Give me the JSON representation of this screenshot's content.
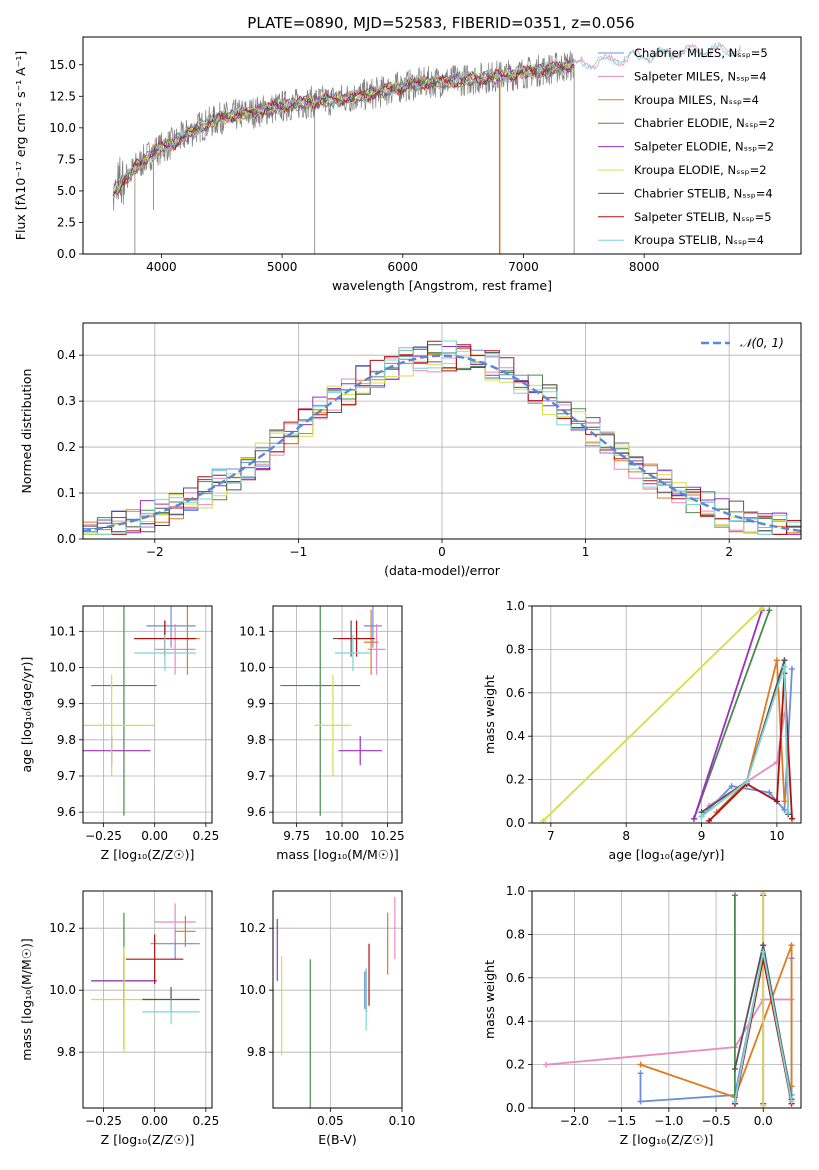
{
  "figure_title": "PLATE=0890, MJD=52583, FIBERID=0351, z=0.056",
  "colors": {
    "models": [
      "#6c8ee0",
      "#e88bc0",
      "#e07b20",
      "#4a8a50",
      "#9b30c0",
      "#d4e040",
      "#555555",
      "#b01010",
      "#7fd4d4"
    ]
  },
  "chart_data": [
    {
      "id": "spectrum",
      "type": "line",
      "title": "PLATE=0890, MJD=52583, FIBERID=0351, z=0.056",
      "xlabel": "wavelength [Angstrom, rest frame]",
      "ylabel": "Flux [fλ10⁻¹⁷ erg cm⁻² s⁻¹ A⁻¹]",
      "xlim": [
        3350,
        9300
      ],
      "ylim": [
        0,
        17.2
      ],
      "xticks": [
        "4000",
        "5000",
        "6000",
        "7000",
        "8000"
      ],
      "xtick_values": [
        4000,
        5000,
        6000,
        7000,
        8000
      ],
      "yticks": [
        "0.0",
        "2.5",
        "5.0",
        "7.5",
        "10.0",
        "12.5",
        "15.0"
      ],
      "ytick_values": [
        0,
        2.5,
        5,
        7.5,
        10,
        12.5,
        15
      ],
      "legend": "right",
      "series": [
        {
          "name": "Chabrier MILES, Nₛₛₚ=5",
          "model": true
        },
        {
          "name": "Salpeter MILES, Nₛₛₚ=4",
          "model": true
        },
        {
          "name": "Kroupa MILES, Nₛₛₚ=4",
          "model": true
        },
        {
          "name": "Chabrier ELODIE, Nₛₛₚ=2",
          "model": true
        },
        {
          "name": "Salpeter ELODIE, Nₛₛₚ=2",
          "model": true
        },
        {
          "name": "Kroupa ELODIE, Nₛₛₚ=2",
          "model": true
        },
        {
          "name": "Chabrier STELIB, Nₛₛₚ=4",
          "model": true
        },
        {
          "name": "Salpeter STELIB, Nₛₛₚ=5",
          "model": true
        },
        {
          "name": "Kroupa STELIB, Nₛₛₚ=4",
          "model": true
        }
      ],
      "continuum": {
        "x": [
          3600,
          3800,
          3950,
          4100,
          4300,
          4500,
          4800,
          5000,
          5200,
          5500,
          5800,
          6000,
          6200,
          6500,
          6700,
          6900,
          7100,
          7300,
          7500,
          7700,
          7900,
          8100,
          8300,
          8500,
          8900,
          9200
        ],
        "y": [
          4.8,
          7.0,
          8.2,
          8.8,
          10.0,
          10.8,
          11.3,
          11.7,
          12.0,
          12.3,
          12.8,
          13.3,
          13.6,
          13.8,
          14.0,
          14.2,
          14.5,
          14.8,
          15.1,
          15.3,
          15.6,
          15.8,
          16.0,
          16.1,
          16.2,
          16.3
        ]
      }
    },
    {
      "id": "residuals",
      "type": "bar",
      "xlabel": "(data-model)/error",
      "ylabel": "Normed distribution",
      "xlim": [
        -2.5,
        2.5
      ],
      "ylim": [
        0,
        0.47
      ],
      "xticks": [
        "−2",
        "−1",
        "0",
        "1",
        "2"
      ],
      "xtick_values": [
        -2,
        -1,
        0,
        1,
        2
      ],
      "yticks": [
        "0.0",
        "0.1",
        "0.2",
        "0.3",
        "0.4"
      ],
      "ytick_values": [
        0,
        0.1,
        0.2,
        0.3,
        0.4
      ],
      "legend_label": "𝒩(0, 1)",
      "bin_width": 0.1,
      "bin_start": -2.5,
      "reference_curve": "gaussian(0,1)",
      "amplitude_jitter": 0.035
    },
    {
      "id": "age-vs-z",
      "type": "scatter",
      "xlabel": "Z [log₁₀(Z/Z☉)]",
      "ylabel": "age  [log₁₀(age/yr)]",
      "xlim": [
        -0.35,
        0.28
      ],
      "ylim": [
        9.57,
        10.17
      ],
      "xticks": [
        "−0.25",
        "0.00",
        "0.25"
      ],
      "xtick_values": [
        -0.25,
        0,
        0.25
      ],
      "yticks": [
        "9.6",
        "9.7",
        "9.8",
        "9.9",
        "10.0",
        "10.1"
      ],
      "ytick_values": [
        9.6,
        9.7,
        9.8,
        9.9,
        10.0,
        10.1
      ],
      "points": [
        {
          "x": 0.08,
          "y": 10.115,
          "xe": 0.12,
          "ye": 0.06,
          "c": 0
        },
        {
          "x": 0.1,
          "y": 10.05,
          "xe": 0.1,
          "ye": 0.07,
          "c": 1
        },
        {
          "x": 0.16,
          "y": 10.08,
          "xe": 0.06,
          "ye": 0.1,
          "c": 2
        },
        {
          "x": -0.15,
          "y": 9.95,
          "xe": 0.16,
          "ye": 0.36,
          "c": 3
        },
        {
          "x": -0.21,
          "y": 9.77,
          "xe": 0.19,
          "ye": 0.04,
          "c": 4
        },
        {
          "x": -0.21,
          "y": 9.84,
          "xe": 0.21,
          "ye": 0.14,
          "c": 5
        },
        {
          "x": 0.05,
          "y": 10.08,
          "xe": 0.15,
          "ye": 0.05,
          "c": 6
        },
        {
          "x": 0.05,
          "y": 10.08,
          "xe": 0.15,
          "ye": 0.05,
          "c": 7
        },
        {
          "x": 0.05,
          "y": 10.04,
          "xe": 0.15,
          "ye": 0.05,
          "c": 8
        }
      ]
    },
    {
      "id": "age-vs-mass",
      "type": "scatter",
      "xlabel": "mass [log₁₀(M/M☉)]",
      "ylabel": "",
      "xlim": [
        9.62,
        10.33
      ],
      "ylim": [
        9.57,
        10.17
      ],
      "xticks": [
        "9.75",
        "10.00",
        "10.25"
      ],
      "xtick_values": [
        9.75,
        10,
        10.25
      ],
      "yticks": [
        "9.6",
        "9.7",
        "9.8",
        "9.9",
        "10.0",
        "10.1"
      ],
      "ytick_values": [
        9.6,
        9.7,
        9.8,
        9.9,
        10.0,
        10.1
      ],
      "points": [
        {
          "x": 10.17,
          "y": 10.115,
          "xe": 0.05,
          "ye": 0.06,
          "c": 0
        },
        {
          "x": 10.19,
          "y": 10.05,
          "xe": 0.05,
          "ye": 0.07,
          "c": 1
        },
        {
          "x": 10.16,
          "y": 10.07,
          "xe": 0.04,
          "ye": 0.09,
          "c": 2
        },
        {
          "x": 9.88,
          "y": 9.95,
          "xe": 0.22,
          "ye": 0.36,
          "c": 3
        },
        {
          "x": 10.1,
          "y": 9.77,
          "xe": 0.12,
          "ye": 0.04,
          "c": 4
        },
        {
          "x": 9.95,
          "y": 9.84,
          "xe": 0.1,
          "ye": 0.14,
          "c": 5
        },
        {
          "x": 10.05,
          "y": 10.08,
          "xe": 0.1,
          "ye": 0.05,
          "c": 6
        },
        {
          "x": 10.08,
          "y": 10.08,
          "xe": 0.1,
          "ye": 0.05,
          "c": 7
        },
        {
          "x": 10.06,
          "y": 10.04,
          "xe": 0.1,
          "ye": 0.05,
          "c": 8
        }
      ]
    },
    {
      "id": "weight-vs-age",
      "type": "line",
      "xlabel": "age  [log₁₀(age/yr)]",
      "ylabel": "mass weight",
      "xlim": [
        6.75,
        10.32
      ],
      "ylim": [
        0,
        1
      ],
      "xticks": [
        "7",
        "8",
        "9",
        "10"
      ],
      "xtick_values": [
        7,
        8,
        9,
        10
      ],
      "yticks": [
        "0.0",
        "0.2",
        "0.4",
        "0.6",
        "0.8",
        "1.0"
      ],
      "ytick_values": [
        0,
        0.2,
        0.4,
        0.6,
        0.8,
        1.0
      ],
      "series": [
        {
          "c": 0,
          "x": [
            9.0,
            9.4,
            9.9,
            10.1,
            10.2
          ],
          "y": [
            0.03,
            0.17,
            0.14,
            0.06,
            0.71
          ]
        },
        {
          "c": 1,
          "x": [
            9.1,
            9.6,
            10.0,
            10.1
          ],
          "y": [
            0.08,
            0.19,
            0.28,
            0.5
          ]
        },
        {
          "c": 2,
          "x": [
            9.2,
            9.6,
            10.0,
            10.1
          ],
          "y": [
            0.05,
            0.19,
            0.75,
            0.1
          ]
        },
        {
          "c": 3,
          "x": [
            8.9,
            9.9
          ],
          "y": [
            0.02,
            0.98
          ]
        },
        {
          "c": 4,
          "x": [
            8.9,
            9.8
          ],
          "y": [
            0.02,
            0.98
          ]
        },
        {
          "c": 5,
          "x": [
            6.9,
            9.8
          ],
          "y": [
            0.01,
            0.99
          ]
        },
        {
          "c": 6,
          "x": [
            9.0,
            9.6,
            10.1,
            10.15
          ],
          "y": [
            0.05,
            0.19,
            0.75,
            0.04
          ]
        },
        {
          "c": 7,
          "x": [
            9.1,
            9.6,
            10.0,
            10.1,
            10.2
          ],
          "y": [
            0.01,
            0.18,
            0.1,
            0.69,
            0.02
          ]
        },
        {
          "c": 8,
          "x": [
            9.0,
            9.6,
            10.1,
            10.15
          ],
          "y": [
            0.03,
            0.19,
            0.72,
            0.05
          ]
        }
      ]
    },
    {
      "id": "mass-vs-z",
      "type": "scatter",
      "xlabel": "Z [log₁₀(Z/Z☉)]",
      "ylabel": "mass [log₁₀(M/M☉)]",
      "xlim": [
        -0.35,
        0.28
      ],
      "ylim": [
        9.62,
        10.32
      ],
      "xticks": [
        "−0.25",
        "0.00",
        "0.25"
      ],
      "xtick_values": [
        -0.25,
        0,
        0.25
      ],
      "yticks": [
        "9.8",
        "10.0",
        "10.2"
      ],
      "ytick_values": [
        9.8,
        10.0,
        10.2
      ],
      "points": [
        {
          "x": 0.1,
          "y": 10.15,
          "xe": 0.12,
          "ye": 0.05,
          "c": 0
        },
        {
          "x": 0.1,
          "y": 10.22,
          "xe": 0.1,
          "ye": 0.06,
          "c": 1
        },
        {
          "x": 0.15,
          "y": 10.19,
          "xe": 0.05,
          "ye": 0.05,
          "c": 2
        },
        {
          "x": -0.15,
          "y": 10.03,
          "xe": 0.16,
          "ye": 0.22,
          "c": 3
        },
        {
          "x": -0.15,
          "y": 10.03,
          "xe": 0.16,
          "ye": 0.08,
          "c": 4
        },
        {
          "x": -0.15,
          "y": 9.97,
          "xe": 0.16,
          "ye": 0.17,
          "c": 5
        },
        {
          "x": 0.08,
          "y": 9.97,
          "xe": 0.14,
          "ye": 0.04,
          "c": 6
        },
        {
          "x": 0.0,
          "y": 10.1,
          "xe": 0.14,
          "ye": 0.08,
          "c": 7
        },
        {
          "x": 0.08,
          "y": 9.93,
          "xe": 0.14,
          "ye": 0.04,
          "c": 8
        }
      ]
    },
    {
      "id": "mass-vs-ebv",
      "type": "scatter",
      "xlabel": "E(B-V)",
      "ylabel": "",
      "xlim": [
        0.01,
        0.1
      ],
      "ylim": [
        9.62,
        10.32
      ],
      "xticks": [
        "0.05",
        "0.10"
      ],
      "xtick_values": [
        0.05,
        0.1
      ],
      "yticks": [
        "9.8",
        "10.0",
        "10.2"
      ],
      "ytick_values": [
        9.8,
        10.0,
        10.2
      ],
      "points": [
        {
          "x": 0.074,
          "y": 10.0,
          "xe": 0,
          "ye": 0.06,
          "c": 0
        },
        {
          "x": 0.095,
          "y": 10.2,
          "xe": 0,
          "ye": 0.1,
          "c": 1
        },
        {
          "x": 0.09,
          "y": 10.15,
          "xe": 0,
          "ye": 0.1,
          "c": 2
        },
        {
          "x": 0.036,
          "y": 9.85,
          "xe": 0,
          "ye": 0.25,
          "c": 3
        },
        {
          "x": 0.013,
          "y": 10.13,
          "xe": 0,
          "ye": 0.1,
          "c": 4
        },
        {
          "x": 0.016,
          "y": 9.95,
          "xe": 0,
          "ye": 0.16,
          "c": 5
        },
        {
          "x": 0.075,
          "y": 10.0,
          "xe": 0,
          "ye": 0.07,
          "c": 6
        },
        {
          "x": 0.077,
          "y": 10.05,
          "xe": 0,
          "ye": 0.1,
          "c": 7
        },
        {
          "x": 0.075,
          "y": 9.97,
          "xe": 0,
          "ye": 0.1,
          "c": 8
        }
      ]
    },
    {
      "id": "weight-vs-z",
      "type": "line",
      "xlabel": "Z [log₁₀(Z/Z☉)]",
      "ylabel": "mass weight",
      "xlim": [
        -2.45,
        0.4
      ],
      "ylim": [
        0,
        1
      ],
      "xticks": [
        "−2.0",
        "−1.5",
        "−1.0",
        "−0.5",
        "0.0"
      ],
      "xtick_values": [
        -2,
        -1.5,
        -1,
        -0.5,
        0
      ],
      "yticks": [
        "0.0",
        "0.2",
        "0.4",
        "0.6",
        "0.8",
        "1.0"
      ],
      "ytick_values": [
        0,
        0.2,
        0.4,
        0.6,
        0.8,
        1.0
      ],
      "series": [
        {
          "c": 0,
          "x": [
            -1.3,
            -1.3,
            -0.3,
            0.0,
            0.3,
            0.3
          ],
          "y": [
            0.16,
            0.03,
            0.06,
            0.71,
            0.06,
            0.69
          ]
        },
        {
          "c": 1,
          "x": [
            -2.3,
            -0.3,
            0.0,
            0.3
          ],
          "y": [
            0.2,
            0.28,
            0.5,
            0.5
          ]
        },
        {
          "c": 2,
          "x": [
            -1.3,
            -0.3,
            -0.3,
            0.3,
            0.3
          ],
          "y": [
            0.2,
            0.05,
            0.05,
            0.75,
            0.1
          ]
        },
        {
          "c": 3,
          "x": [
            -0.3,
            -0.3
          ],
          "y": [
            0.02,
            0.98
          ]
        },
        {
          "c": 4,
          "x": [
            0.0,
            0.0
          ],
          "y": [
            0.02,
            0.98
          ]
        },
        {
          "c": 5,
          "x": [
            0.0,
            0.0
          ],
          "y": [
            0.01,
            0.99
          ]
        },
        {
          "c": 6,
          "x": [
            -0.3,
            0.0,
            0.3
          ],
          "y": [
            0.18,
            0.75,
            0.04
          ]
        },
        {
          "c": 7,
          "x": [
            -0.3,
            0.0,
            0.3
          ],
          "y": [
            0.02,
            0.69,
            0.02
          ]
        },
        {
          "c": 8,
          "x": [
            -0.3,
            0.0,
            0.3
          ],
          "y": [
            0.03,
            0.72,
            0.03
          ]
        }
      ]
    }
  ]
}
